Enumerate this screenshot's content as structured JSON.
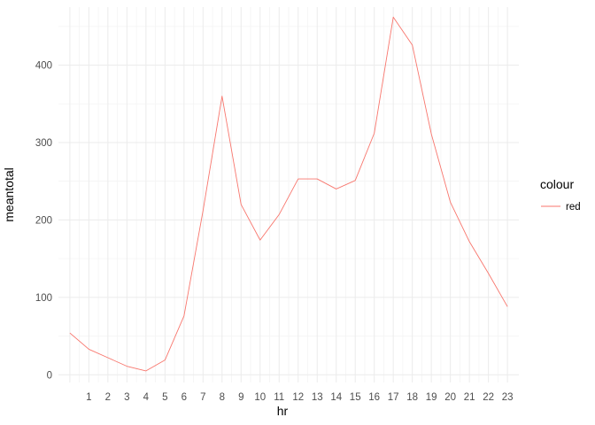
{
  "chart_data": {
    "type": "line",
    "title": "",
    "xlabel": "hr",
    "ylabel": "meantotal",
    "x": [
      0,
      1,
      2,
      3,
      4,
      5,
      6,
      7,
      8,
      9,
      10,
      11,
      12,
      13,
      14,
      15,
      16,
      17,
      18,
      19,
      20,
      21,
      22,
      23
    ],
    "x_tick_labels": [
      "1",
      "2",
      "3",
      "4",
      "5",
      "6",
      "7",
      "8",
      "9",
      "10",
      "11",
      "12",
      "13",
      "14",
      "15",
      "16",
      "17",
      "18",
      "19",
      "20",
      "21",
      "22",
      "23"
    ],
    "y_ticks": [
      0,
      100,
      200,
      300,
      400
    ],
    "y_tick_labels": [
      "0",
      "100",
      "200",
      "300",
      "400"
    ],
    "xlim": [
      -0.6,
      23.6
    ],
    "ylim": [
      -10,
      475
    ],
    "grid": true,
    "series": [
      {
        "name": "red",
        "color": "#F8766D",
        "values": [
          54,
          33,
          22,
          11,
          5,
          19,
          76,
          212,
          360,
          220,
          174,
          207,
          253,
          253,
          240,
          251,
          312,
          462,
          426,
          311,
          223,
          172,
          131,
          88
        ]
      }
    ],
    "legend": {
      "title": "colour",
      "entries": [
        "red"
      ],
      "position": "right"
    }
  }
}
